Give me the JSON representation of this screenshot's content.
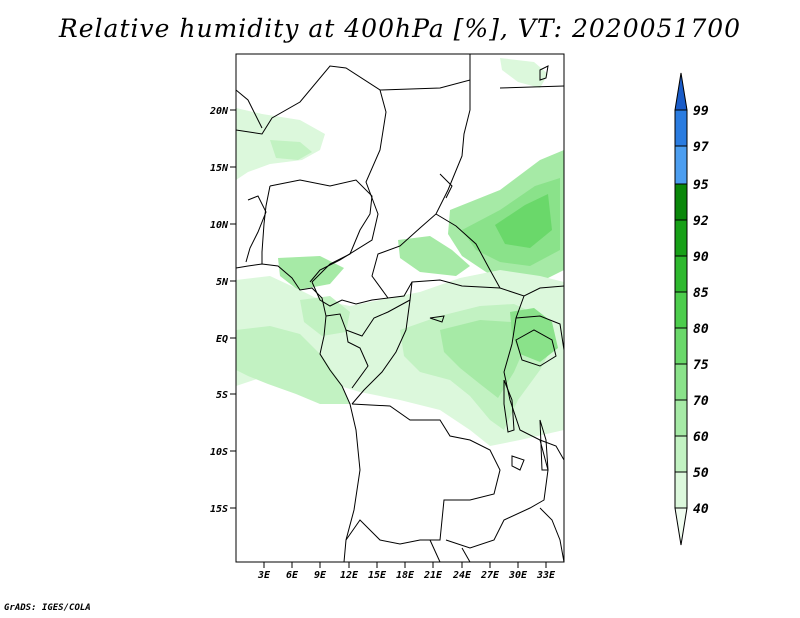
{
  "title": "Relative humidity at 400hPa [%], VT: 2020051700",
  "credit": "GrADS: IGES/COLA",
  "map": {
    "lat_ticks": [
      "20N",
      "15N",
      "10N",
      "5N",
      "EQ",
      "5S",
      "10S",
      "15S"
    ],
    "lon_ticks": [
      "3E",
      "6E",
      "9E",
      "12E",
      "15E",
      "18E",
      "21E",
      "24E",
      "27E",
      "30E",
      "33E"
    ]
  },
  "colorbar": {
    "levels": [
      "40",
      "50",
      "60",
      "70",
      "75",
      "80",
      "85",
      "90",
      "92",
      "95",
      "97",
      "99"
    ],
    "colors": [
      "#f0fcf0",
      "#dcf8dc",
      "#c2f2c2",
      "#a6eaa6",
      "#8ae28a",
      "#6ad86a",
      "#4ccd4c",
      "#2eb82e",
      "#17a017",
      "#0a870a",
      "#4c9ef0",
      "#2a7ce0",
      "#1a5cc8"
    ]
  }
}
